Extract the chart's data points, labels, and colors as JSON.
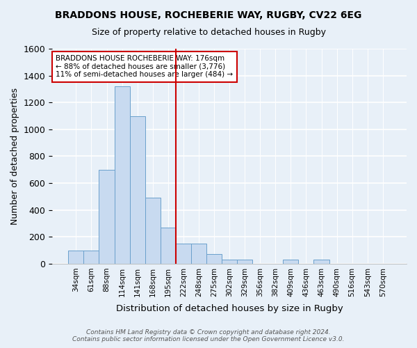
{
  "title": "BRADDONS HOUSE, ROCHEBERIE WAY, RUGBY, CV22 6EG",
  "subtitle": "Size of property relative to detached houses in Rugby",
  "xlabel": "Distribution of detached houses by size in Rugby",
  "ylabel": "Number of detached properties",
  "footnote1": "Contains HM Land Registry data © Crown copyright and database right 2024.",
  "footnote2": "Contains public sector information licensed under the Open Government Licence v3.0.",
  "annotation_line1": "BRADDONS HOUSE ROCHEBERIE WAY: 176sqm",
  "annotation_line2": "← 88% of detached houses are smaller (3,776)",
  "annotation_line3": "11% of semi-detached houses are larger (484) →",
  "categories": [
    "34sqm",
    "61sqm",
    "88sqm",
    "114sqm",
    "141sqm",
    "168sqm",
    "195sqm",
    "222sqm",
    "248sqm",
    "275sqm",
    "302sqm",
    "329sqm",
    "356sqm",
    "382sqm",
    "409sqm",
    "436sqm",
    "463sqm",
    "490sqm",
    "516sqm",
    "543sqm",
    "570sqm"
  ],
  "values": [
    100,
    100,
    700,
    1320,
    1100,
    490,
    270,
    150,
    150,
    70,
    30,
    30,
    0,
    0,
    30,
    0,
    30,
    0,
    0,
    0,
    0
  ],
  "highlight_index": 6,
  "bar_color_normal": "#c8daf0",
  "bar_color_highlight": "#c8daf0",
  "bar_edgecolor": "#6aa0cc",
  "vline_color": "#cc0000",
  "bg_color": "#e8f0f8",
  "plot_bg_color": "#e8f0f8",
  "ylim": [
    0,
    1600
  ],
  "yticks": [
    0,
    200,
    400,
    600,
    800,
    1000,
    1200,
    1400,
    1600
  ],
  "annotation_box_facecolor": "#ffffff",
  "annotation_box_edgecolor": "#cc0000",
  "title_fontsize": 10,
  "subtitle_fontsize": 9,
  "grid_color": "#ffffff"
}
